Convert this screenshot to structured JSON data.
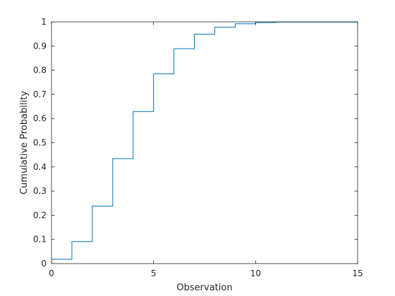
{
  "chart_data": {
    "type": "line",
    "step": true,
    "title": "",
    "xlabel": "Observation",
    "ylabel": "Cumulative Probability",
    "xlim": [
      0,
      15
    ],
    "ylim": [
      0,
      1
    ],
    "xticks": [
      0,
      5,
      10,
      15
    ],
    "xtick_labels": [
      "0",
      "5",
      "10",
      "15"
    ],
    "yticks": [
      0,
      0.1,
      0.2,
      0.3,
      0.4,
      0.5,
      0.6,
      0.7,
      0.8,
      0.9,
      1
    ],
    "ytick_labels": [
      "0",
      "0.1",
      "0.2",
      "0.3",
      "0.4",
      "0.5",
      "0.6",
      "0.7",
      "0.8",
      "0.9",
      "1"
    ],
    "grid": false,
    "series": [
      {
        "x": [
          0,
          1,
          2,
          3,
          4,
          5,
          6,
          7,
          8,
          9,
          10,
          11,
          15
        ],
        "y": [
          0.018,
          0.091,
          0.238,
          0.434,
          0.629,
          0.785,
          0.889,
          0.949,
          0.978,
          0.992,
          0.997,
          0.999,
          1.0
        ],
        "color": "#0072BD"
      }
    ]
  }
}
